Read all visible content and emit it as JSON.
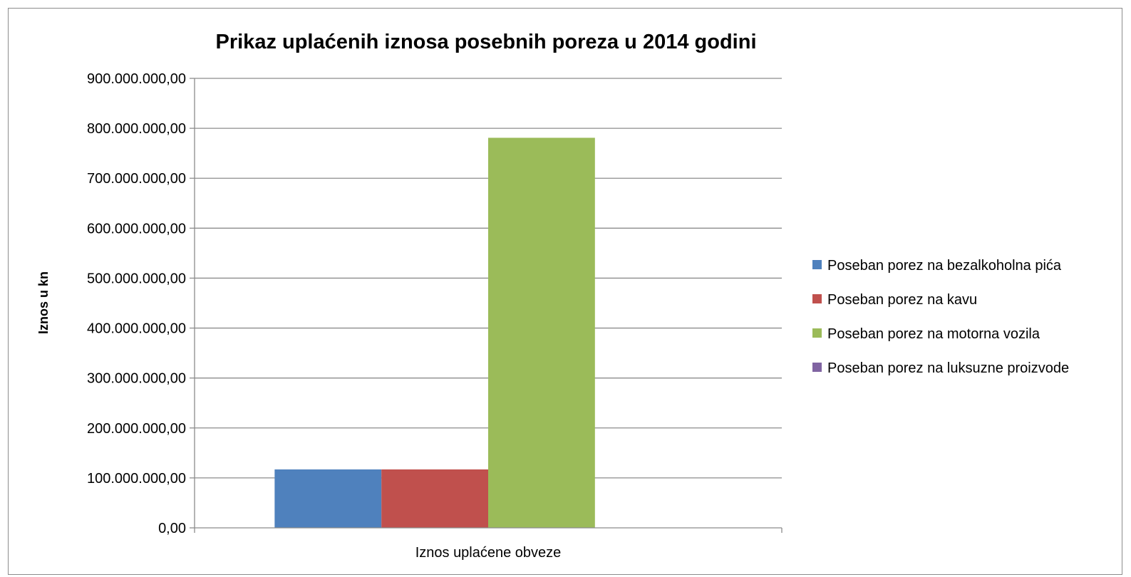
{
  "chart_data": {
    "type": "bar",
    "title": "Prikaz uplaćenih iznosa posebnih poreza u  2014 godini",
    "xlabel": "",
    "ylabel": "Iznos u kn",
    "categories": [
      "Iznos uplaćene obveze"
    ],
    "ylim": [
      0,
      900000000
    ],
    "yticks": [
      0,
      100000000,
      200000000,
      300000000,
      400000000,
      500000000,
      600000000,
      700000000,
      800000000,
      900000000
    ],
    "ytick_labels": [
      "0,00",
      "100.000.000,00",
      "200.000.000,00",
      "300.000.000,00",
      "400.000.000,00",
      "500.000.000,00",
      "600.000.000,00",
      "700.000.000,00",
      "800.000.000,00",
      "900.000.000,00"
    ],
    "grid": true,
    "legend_position": "right",
    "series": [
      {
        "name": "Poseban porez na bezalkoholna pića",
        "values": [
          117000000
        ],
        "color": "#4f81bd"
      },
      {
        "name": "Poseban porez na kavu",
        "values": [
          117000000
        ],
        "color": "#c0504d"
      },
      {
        "name": "Poseban porez na motorna vozila",
        "values": [
          781000000
        ],
        "color": "#9bbb59"
      },
      {
        "name": "Poseban porez na luksuzne proizvode",
        "values": [
          0
        ],
        "color": "#8064a2"
      }
    ]
  }
}
